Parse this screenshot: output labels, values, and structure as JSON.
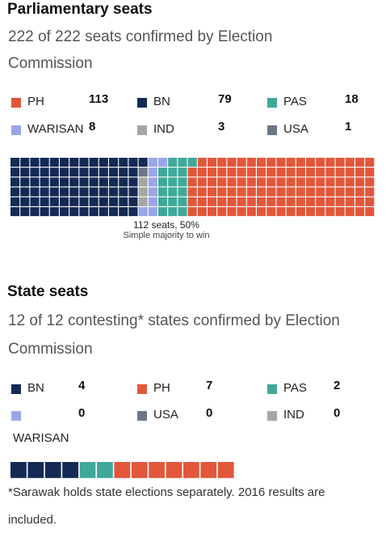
{
  "chart_data": [
    {
      "type": "waffle",
      "title": "Parliamentary seats",
      "subtitle_line1": "222 of 222 seats confirmed by Election",
      "subtitle_line2": "Commission",
      "series": [
        {
          "name": "PH",
          "value": 113,
          "color": "#e2573a"
        },
        {
          "name": "BN",
          "value": 79,
          "color": "#142a55"
        },
        {
          "name": "PAS",
          "value": 18,
          "color": "#3fa999"
        },
        {
          "name": "WARISAN",
          "value": 8,
          "color": "#9aa6e8"
        },
        {
          "name": "IND",
          "value": 3,
          "color": "#a6a6a6"
        },
        {
          "name": "USA",
          "value": 1,
          "color": "#6b7787"
        }
      ],
      "fill_order": [
        "BN",
        "USA",
        "IND",
        "WARISAN",
        "PAS",
        "PH"
      ],
      "annotation": "112 seats, 50%",
      "annotation_sub": "Simple majority to win"
    },
    {
      "type": "waffle",
      "title": "State seats",
      "subtitle_line1": "12 of 12 contesting* states confirmed by Election",
      "subtitle_line2": "Commission",
      "series": [
        {
          "name": "BN",
          "value": 4,
          "color": "#142a55"
        },
        {
          "name": "PH",
          "value": 7,
          "color": "#e2573a"
        },
        {
          "name": "PAS",
          "value": 2,
          "color": "#3fa999"
        },
        {
          "name": "WARISAN",
          "value": 0,
          "color": "#9aa6e8"
        },
        {
          "name": "USA",
          "value": 0,
          "color": "#6b7787"
        },
        {
          "name": "IND",
          "value": 0,
          "color": "#a6a6a6"
        }
      ],
      "fill_order": [
        "BN",
        "PAS",
        "PH"
      ],
      "footnote_line1": "*Sarawak holds state elections separately. 2016 results are",
      "footnote_line2": "included."
    }
  ]
}
